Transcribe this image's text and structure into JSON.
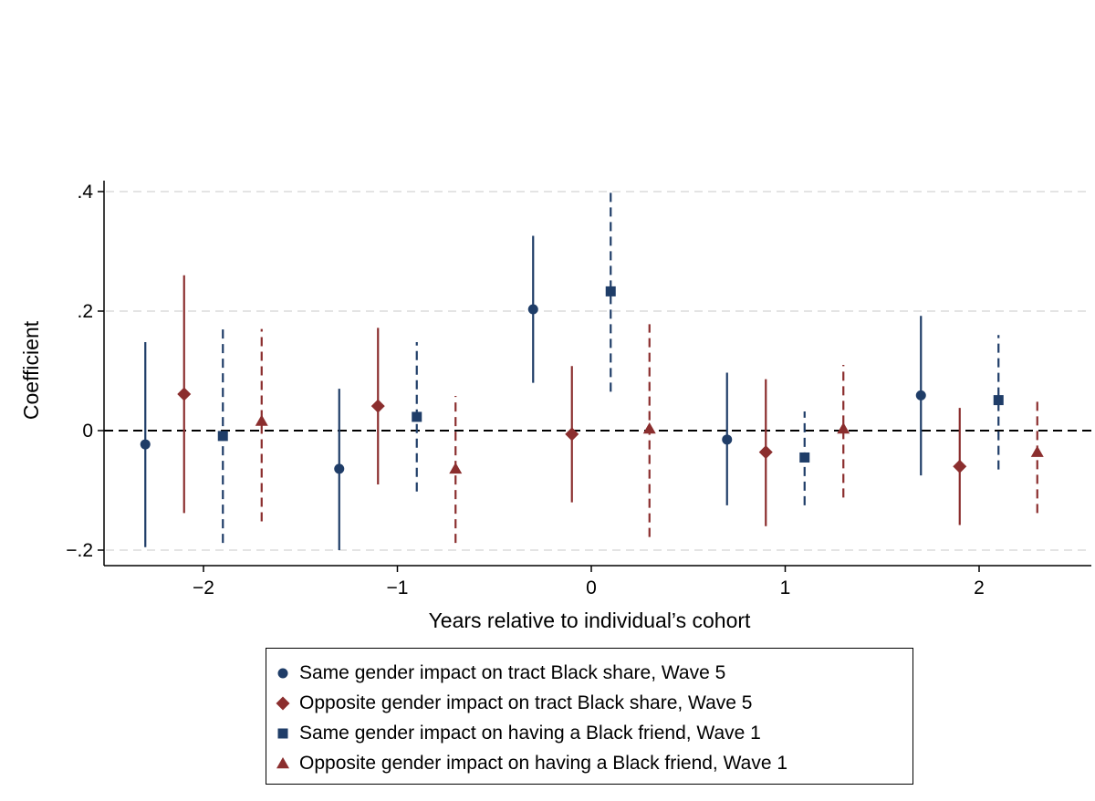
{
  "chart_data": {
    "type": "scatter",
    "subtype": "coefficient-plot-with-confidence-intervals",
    "xlabel": "Years relative to individual’s cohort",
    "ylabel": "Coefficient",
    "xlim": [
      -2.4,
      2.45
    ],
    "ylim": [
      -0.22,
      0.42
    ],
    "xticks": [
      -2,
      -1,
      0,
      1,
      2
    ],
    "xtick_labels": [
      "−2",
      "−1",
      "0",
      "1",
      "2"
    ],
    "yticks": [
      -0.2,
      0,
      0.2,
      0.4
    ],
    "ytick_labels": [
      "−.2",
      "0",
      ".2",
      ".4"
    ],
    "grid": "horizontal dashed",
    "reference_line_y": 0,
    "legend_position": "bottom",
    "series": [
      {
        "name": "Same gender impact on tract Black share, Wave 5",
        "marker": "circle",
        "color": "#1f3d68",
        "line_style": "solid",
        "x": [
          -2.3,
          -1.3,
          -0.3,
          0.7,
          1.7
        ],
        "y": [
          -0.023,
          -0.064,
          0.203,
          -0.015,
          0.059
        ],
        "ci_low": [
          -0.195,
          -0.2,
          0.08,
          -0.125,
          -0.075
        ],
        "ci_high": [
          0.148,
          0.07,
          0.326,
          0.097,
          0.192
        ]
      },
      {
        "name": "Opposite gender impact on tract Black share, Wave 5",
        "marker": "diamond",
        "color": "#8b2e2e",
        "line_style": "solid",
        "x": [
          -2.1,
          -1.1,
          -0.1,
          0.9,
          1.9
        ],
        "y": [
          0.061,
          0.041,
          -0.006,
          -0.036,
          -0.06
        ],
        "ci_low": [
          -0.138,
          -0.09,
          -0.12,
          -0.16,
          -0.158
        ],
        "ci_high": [
          0.26,
          0.172,
          0.108,
          0.086,
          0.038
        ]
      },
      {
        "name": "Same gender impact on having a Black friend, Wave 1",
        "marker": "square",
        "color": "#1f3d68",
        "line_style": "dashed",
        "x": [
          -1.9,
          -0.9,
          0.1,
          1.1,
          2.1
        ],
        "y": [
          -0.009,
          0.023,
          0.233,
          -0.045,
          0.051
        ],
        "ci_low": [
          -0.188,
          -0.102,
          0.065,
          -0.125,
          -0.065
        ],
        "ci_high": [
          0.17,
          0.148,
          0.4,
          0.032,
          0.16
        ]
      },
      {
        "name": "Opposite gender impact on having a Black friend, Wave 1",
        "marker": "triangle",
        "color": "#8b2e2e",
        "line_style": "dashed",
        "x": [
          -1.7,
          -0.7,
          0.3,
          1.3,
          2.3
        ],
        "y": [
          0.016,
          -0.064,
          0.003,
          0.003,
          -0.036
        ],
        "ci_low": [
          -0.152,
          -0.188,
          -0.178,
          -0.112,
          -0.138
        ],
        "ci_high": [
          0.17,
          0.058,
          0.178,
          0.11,
          0.052
        ]
      }
    ]
  }
}
